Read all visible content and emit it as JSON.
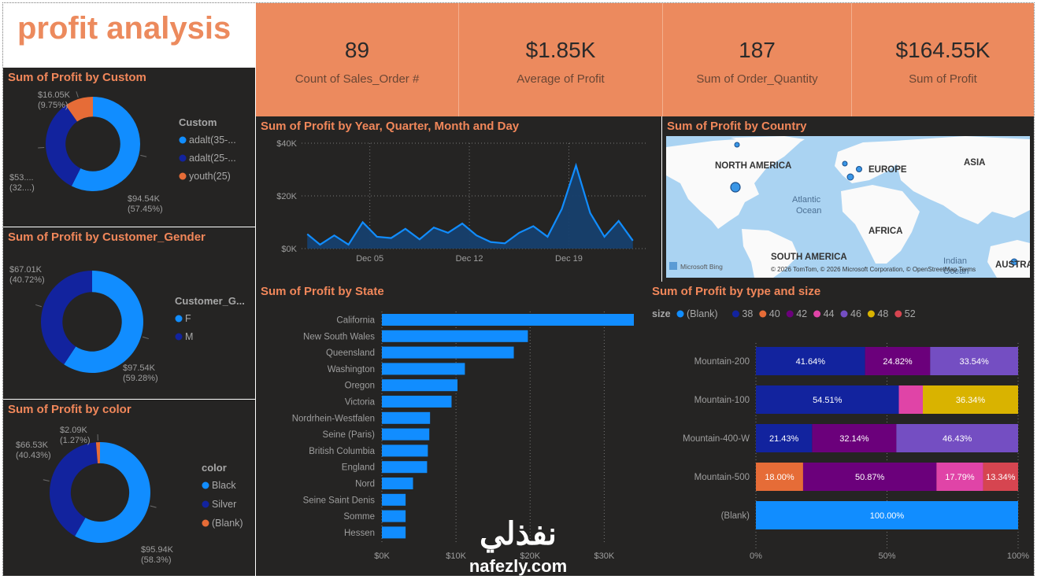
{
  "title": "profit analysis",
  "kpis": [
    {
      "value": "89",
      "label": "Count of Sales_Order #"
    },
    {
      "value": "$1.85K",
      "label": "Average of  Profit"
    },
    {
      "value": "187",
      "label": "Sum of Order_Quantity"
    },
    {
      "value": "$164.55K",
      "label": "Sum of  Profit"
    }
  ],
  "colors": {
    "accent": "#ec8a5e",
    "panel": "#252423",
    "blue": "#118dff",
    "navy": "#12239e",
    "orange": "#e66c37",
    "purple": "#6b007b",
    "pink": "#e044a7",
    "violet": "#744ec2",
    "gold": "#d9b300",
    "red": "#d64550"
  },
  "chart_data": [
    {
      "id": "customer",
      "type": "pie",
      "title": "Sum of Profit by Custom",
      "legend_title": "Custom",
      "slices": [
        {
          "name": "adalt(35-...",
          "value": 94.54,
          "label": "$94.54K",
          "pct": "(57.45%)",
          "color": "#118dff"
        },
        {
          "name": "adalt(25-...",
          "value": 53.96,
          "label": "$53....",
          "pct": "(32....)",
          "color": "#12239e"
        },
        {
          "name": "youth(25)",
          "value": 16.05,
          "label": "$16.05K",
          "pct": "(9.75%)",
          "color": "#e66c37"
        }
      ]
    },
    {
      "id": "gender",
      "type": "pie",
      "title": "Sum of Profit by Customer_Gender",
      "legend_title": "Customer_G...",
      "slices": [
        {
          "name": "F",
          "value": 97.54,
          "label": "$97.54K",
          "pct": "(59.28%)",
          "color": "#118dff"
        },
        {
          "name": "M",
          "value": 67.01,
          "label": "$67.01K",
          "pct": "(40.72%)",
          "color": "#12239e"
        }
      ]
    },
    {
      "id": "color",
      "type": "pie",
      "title": "Sum of Profit by color",
      "legend_title": "color",
      "slices": [
        {
          "name": "Black",
          "value": 95.94,
          "label": "$95.94K",
          "pct": "(58.3%)",
          "color": "#118dff"
        },
        {
          "name": "Silver",
          "value": 66.53,
          "label": "$66.53K",
          "pct": "(40.43%)",
          "color": "#12239e"
        },
        {
          "name": "(Blank)",
          "value": 2.09,
          "label": "$2.09K",
          "pct": "(1.27%)",
          "color": "#e66c37"
        }
      ]
    },
    {
      "id": "timeline",
      "type": "area",
      "title": "Sum of Profit by Year, Quarter, Month and Day",
      "y_ticks": [
        "$0K",
        "$20K",
        "$40K"
      ],
      "ylim": [
        0,
        40000
      ],
      "x_ticks": [
        {
          "label": "Dec 05",
          "day": 5
        },
        {
          "label": "Dec 12",
          "day": 12
        },
        {
          "label": "Dec 19",
          "day": 19
        }
      ],
      "x_range": [
        0.2,
        24.4
      ],
      "x": [
        0.6,
        1.5,
        2.5,
        3.5,
        4.5,
        5.5,
        6.5,
        7.5,
        8.5,
        9.5,
        10.5,
        11.5,
        12.5,
        13.5,
        14.5,
        15.5,
        16.5,
        17.5,
        18.5,
        19.5,
        20.5,
        21.5,
        22.5,
        23.5
      ],
      "values": [
        5500,
        1500,
        5000,
        1500,
        10000,
        4500,
        4000,
        7500,
        3500,
        8000,
        6000,
        9500,
        5000,
        2500,
        2000,
        6000,
        8500,
        4500,
        15000,
        31500,
        13500,
        4500,
        10500,
        3000
      ]
    },
    {
      "id": "country",
      "type": "map",
      "title": "Sum of Profit by Country",
      "labels": [
        "NORTH AMERICA",
        "EUROPE",
        "ASIA",
        "Atlantic",
        "Ocean",
        "AFRICA",
        "SOUTH AMERICA",
        "Indian",
        "Ocean",
        "AUSTRA"
      ],
      "attribution": "Microsoft Bing",
      "copyright": "© 2026 TomTom, © 2026 Microsoft Corporation, © OpenStreetMap  Terms"
    },
    {
      "id": "state",
      "type": "bar",
      "title": "Sum of Profit by State",
      "categories": [
        "California",
        "New South Wales",
        "Queensland",
        "Washington",
        "Oregon",
        "Victoria",
        "Nordrhein-Westfalen",
        "Seine (Paris)",
        "British Columbia",
        "England",
        "Nord",
        "Seine Saint Denis",
        "Somme",
        "Hessen"
      ],
      "values": [
        34000,
        19700,
        17800,
        11200,
        10200,
        9400,
        6500,
        6400,
        6200,
        6100,
        4200,
        3200,
        3200,
        3200
      ],
      "x_ticks": [
        "$0K",
        "$10K",
        "$20K",
        "$30K"
      ],
      "xlim": [
        0,
        34000
      ]
    },
    {
      "id": "typesize",
      "type": "bar",
      "title": "Sum of Profit by type and size",
      "legend_title": "size",
      "legend": [
        {
          "name": "(Blank)",
          "color": "#118dff"
        },
        {
          "name": "38",
          "color": "#12239e"
        },
        {
          "name": "40",
          "color": "#e66c37"
        },
        {
          "name": "42",
          "color": "#6b007b"
        },
        {
          "name": "44",
          "color": "#e044a7"
        },
        {
          "name": "46",
          "color": "#744ec2"
        },
        {
          "name": "48",
          "color": "#d9b300"
        },
        {
          "name": "52",
          "color": "#d64550"
        }
      ],
      "x_ticks": [
        "0%",
        "50%",
        "100%"
      ],
      "rows": [
        {
          "category": "Mountain-200",
          "segments": [
            {
              "size": "38",
              "value": 41.64,
              "label": "41.64%"
            },
            {
              "size": "42",
              "value": 24.82,
              "label": "24.82%"
            },
            {
              "size": "46",
              "value": 33.54,
              "label": "33.54%"
            }
          ]
        },
        {
          "category": "Mountain-100",
          "segments": [
            {
              "size": "38",
              "value": 54.51,
              "label": "54.51%"
            },
            {
              "size": "44",
              "value": 9.15,
              "label": ""
            },
            {
              "size": "48",
              "value": 36.34,
              "label": "36.34%"
            }
          ]
        },
        {
          "category": "Mountain-400-W",
          "segments": [
            {
              "size": "38",
              "value": 21.43,
              "label": "21.43%"
            },
            {
              "size": "42",
              "value": 32.14,
              "label": "32.14%"
            },
            {
              "size": "46",
              "value": 46.43,
              "label": "46.43%"
            }
          ]
        },
        {
          "category": "Mountain-500",
          "segments": [
            {
              "size": "40",
              "value": 18.0,
              "label": "18.00%"
            },
            {
              "size": "42",
              "value": 50.87,
              "label": "50.87%"
            },
            {
              "size": "44",
              "value": 17.79,
              "label": "17.79%"
            },
            {
              "size": "52",
              "value": 13.34,
              "label": "13.34%"
            }
          ]
        },
        {
          "category": "(Blank)",
          "segments": [
            {
              "size": "(Blank)",
              "value": 100.0,
              "label": "100.00%"
            }
          ]
        }
      ]
    }
  ],
  "watermark": {
    "arabic": "نفذلي",
    "latin": "nafezly.com"
  }
}
